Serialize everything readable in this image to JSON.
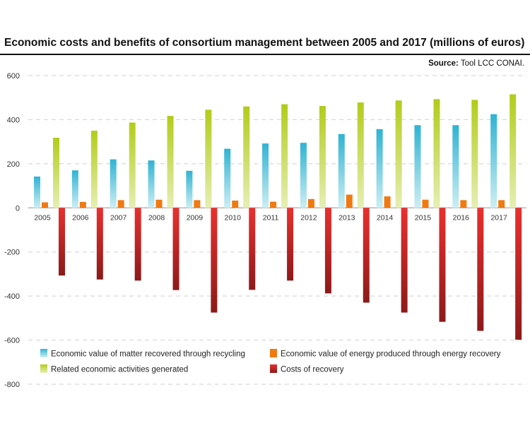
{
  "chart_data": {
    "type": "bar",
    "title": "Economic costs and benefits of consortium management between 2005 and 2017 (millions of euros)",
    "source_label": "Source:",
    "source_text": "Tool LCC CONAI.",
    "xlabel": "",
    "ylabel": "",
    "ylim": [
      -800,
      600
    ],
    "yticks": [
      600,
      400,
      200,
      0,
      -200,
      -400,
      -600,
      -800
    ],
    "grid": true,
    "legend_position": "bottom",
    "categories": [
      "2005",
      "2006",
      "2007",
      "2008",
      "2009",
      "2010",
      "2011",
      "2012",
      "2013",
      "2014",
      "2015",
      "2016",
      "2017"
    ],
    "series": [
      {
        "name": "Economic value of matter recovered through recycling",
        "values": [
          142,
          170,
          220,
          215,
          168,
          268,
          292,
          295,
          335,
          357,
          375,
          375,
          425
        ]
      },
      {
        "name": "Economic value of energy produced through energy recovery",
        "values": [
          25,
          27,
          35,
          37,
          35,
          33,
          28,
          40,
          60,
          52,
          37,
          35,
          35
        ]
      },
      {
        "name": "Related economic activities generated",
        "values": [
          318,
          350,
          387,
          417,
          445,
          460,
          470,
          462,
          478,
          487,
          493,
          490,
          515
        ]
      },
      {
        "name": "Costs of recovery",
        "values": [
          -307,
          -325,
          -330,
          -373,
          -475,
          -372,
          -330,
          -388,
          -430,
          -475,
          -517,
          -558,
          -598
        ]
      }
    ],
    "colors": {
      "recycling_top": "#2fb3d3",
      "recycling_bottom": "#cdeef3",
      "energy": "#f07a11",
      "activities_top": "#b2cc18",
      "activities_bottom": "#e6efb4",
      "costs_top": "#8c1a1a",
      "costs_bottom": "#e8302e",
      "grid": "#cfcfcf",
      "text": "#333333"
    }
  }
}
